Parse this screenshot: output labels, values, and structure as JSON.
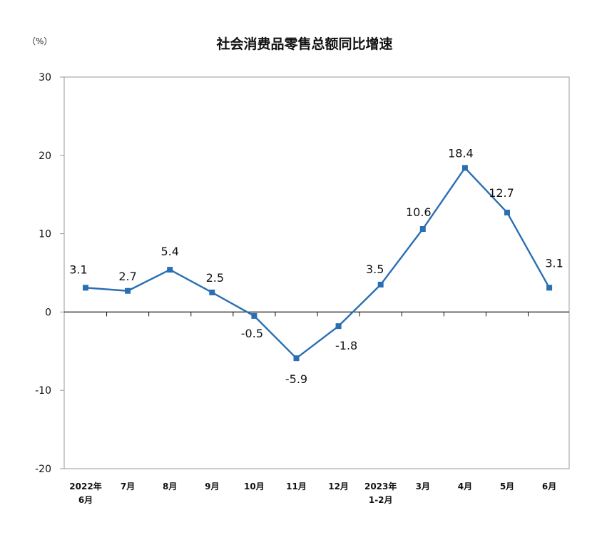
{
  "chart_data": {
    "type": "line",
    "title": "社会消费品零售总额同比增速",
    "unit": "（%）",
    "categories": [
      [
        "2022年",
        "6月"
      ],
      [
        "7月"
      ],
      [
        "8月"
      ],
      [
        "9月"
      ],
      [
        "10月"
      ],
      [
        "11月"
      ],
      [
        "12月"
      ],
      [
        "2023年",
        "1-2月"
      ],
      [
        "3月"
      ],
      [
        "4月"
      ],
      [
        "5月"
      ],
      [
        "6月"
      ]
    ],
    "series": [
      {
        "values": [
          3.1,
          2.7,
          5.4,
          2.5,
          -0.5,
          -5.9,
          -1.8,
          3.5,
          10.6,
          18.4,
          12.7,
          3.1
        ]
      }
    ],
    "data_labels": [
      "3.1",
      "2.7",
      "5.4",
      "2.5",
      "-0.5",
      "-5.9",
      "-1.8",
      "3.5",
      "10.6",
      "18.4",
      "12.7",
      "3.1"
    ],
    "ylim": [
      -20,
      30
    ],
    "yticks": [
      -20,
      -10,
      0,
      10,
      20,
      30
    ],
    "ytick_labels": [
      "-20",
      "-10",
      "0",
      "10",
      "20",
      "30"
    ],
    "line_color": "#2a6fb3",
    "marker": "square",
    "grid": false,
    "legend": "none"
  }
}
